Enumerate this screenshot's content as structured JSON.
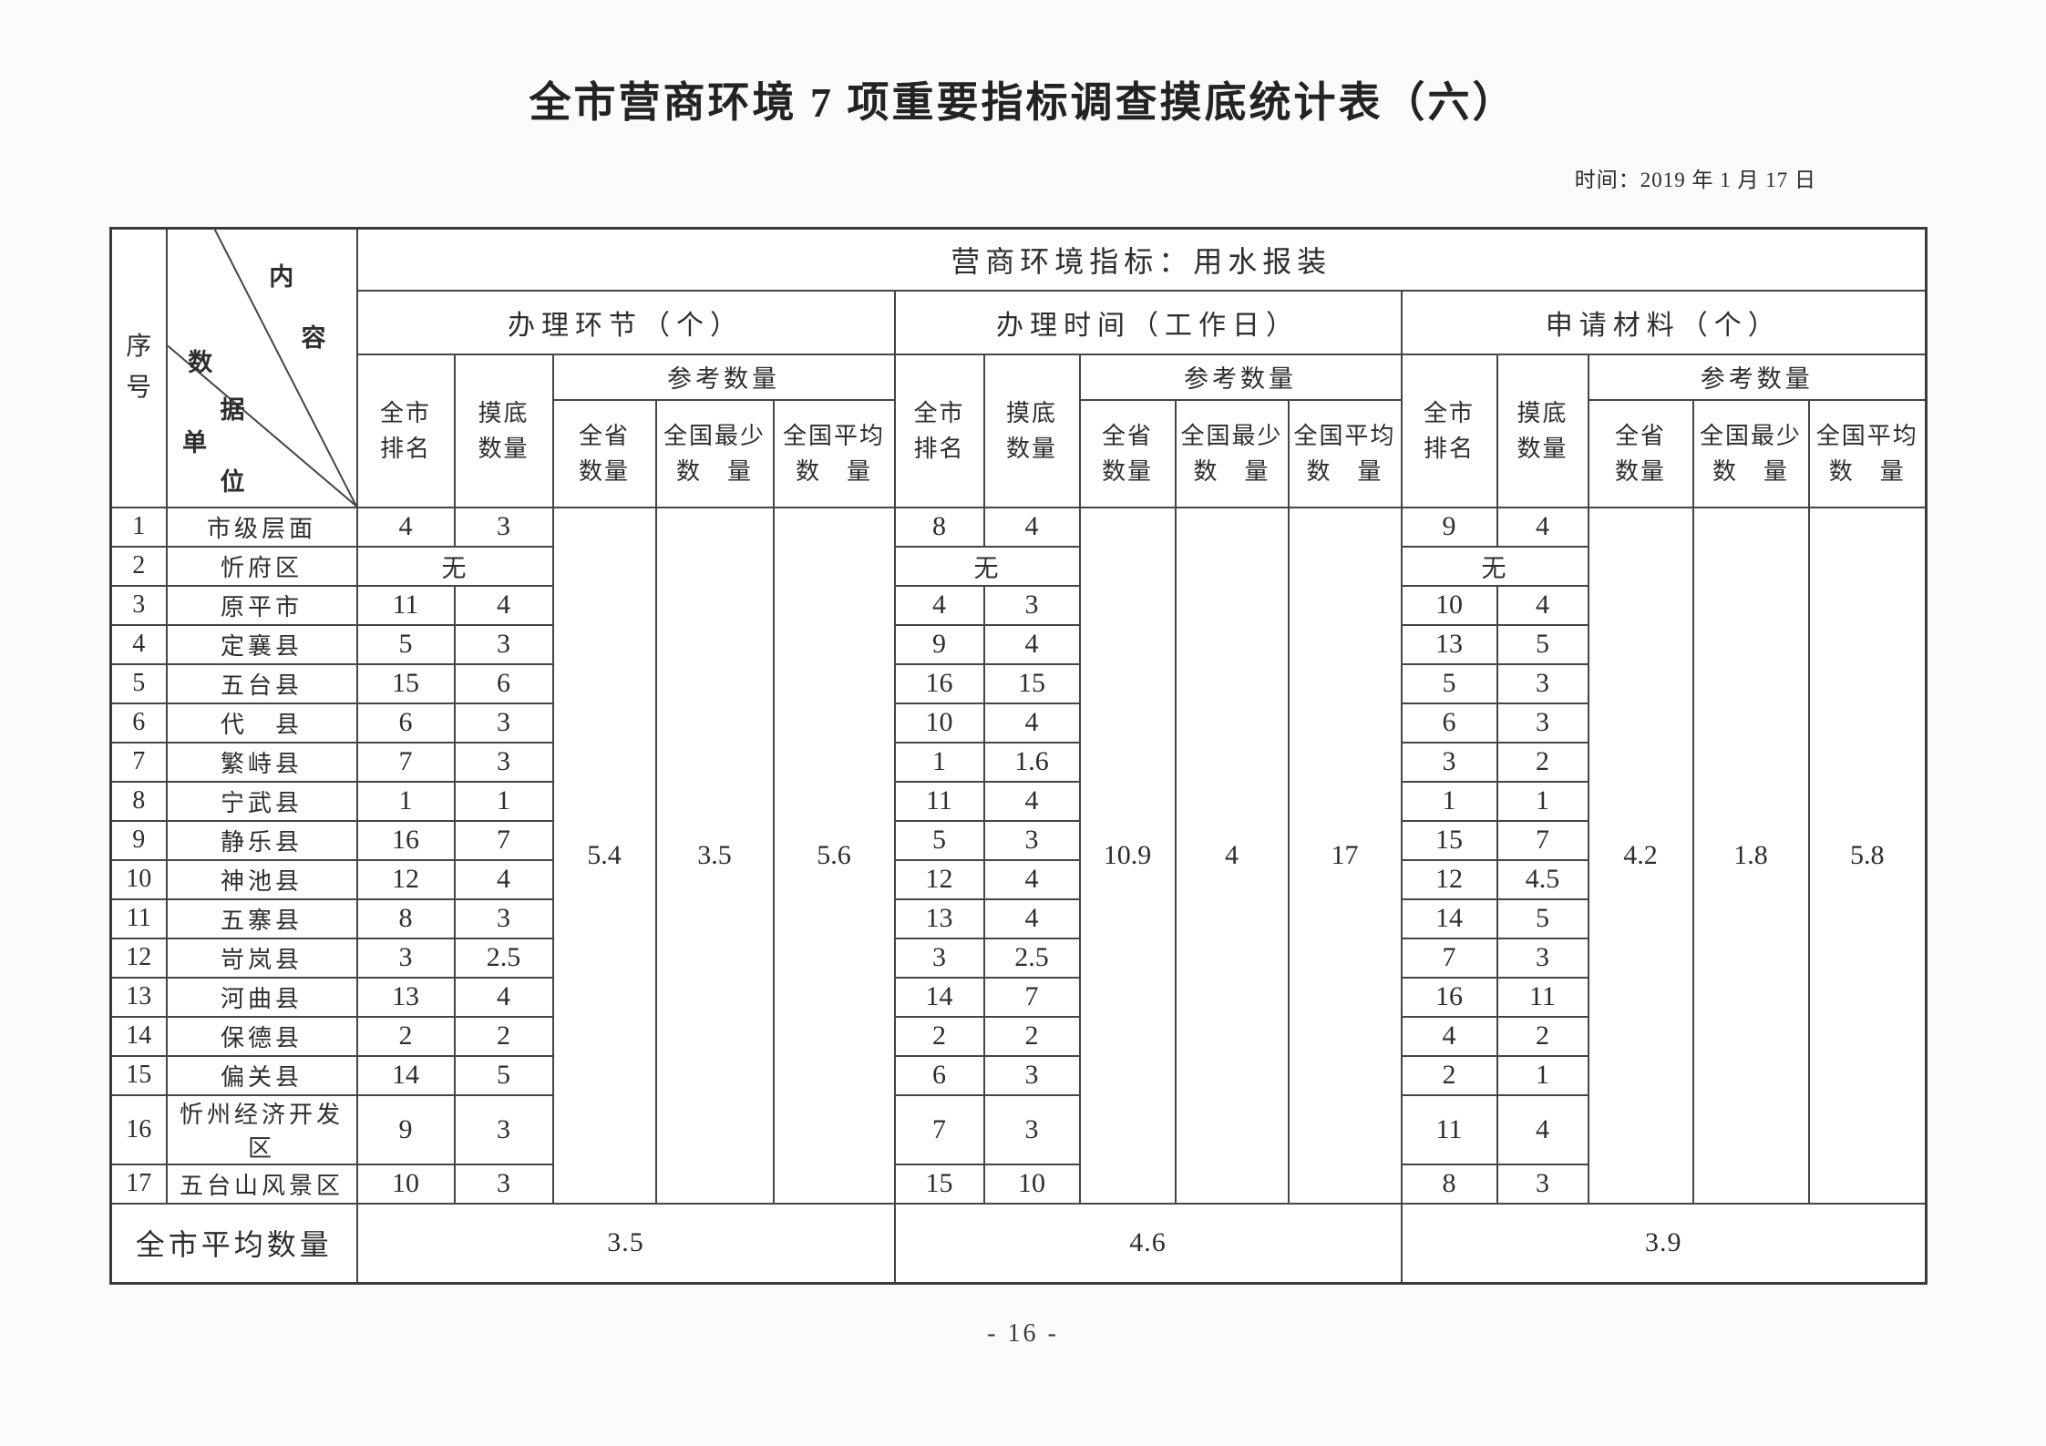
{
  "page": {
    "title": "全市营商环境 7 项重要指标调查摸底统计表（六）",
    "date": "时间：2019 年 1 月 17 日",
    "page_number": "- 16 -"
  },
  "header": {
    "serial": "序号",
    "corner": [
      "内容",
      "数据",
      "单位"
    ],
    "banner": "营商环境指标：用水报装",
    "groups": [
      "办理环节（个）",
      "办理时间（工作日）",
      "申请材料（个）"
    ],
    "sub": {
      "rank": "全市\n排名",
      "survey": "摸底\n数量",
      "reference": "参考数量",
      "province": "全省\n数量",
      "national_min": "全国最少\n数　量",
      "national_avg": "全国平均\n数　量"
    }
  },
  "rows": [
    {
      "no": "1",
      "name": "市级层面",
      "g1": [
        "4",
        "3"
      ],
      "g2": [
        "8",
        "4"
      ],
      "g3": [
        "9",
        "4"
      ]
    },
    {
      "no": "2",
      "name": "忻府区",
      "g1": "无",
      "g2": "无",
      "g3": "无"
    },
    {
      "no": "3",
      "name": "原平市",
      "g1": [
        "11",
        "4"
      ],
      "g2": [
        "4",
        "3"
      ],
      "g3": [
        "10",
        "4"
      ]
    },
    {
      "no": "4",
      "name": "定襄县",
      "g1": [
        "5",
        "3"
      ],
      "g2": [
        "9",
        "4"
      ],
      "g3": [
        "13",
        "5"
      ]
    },
    {
      "no": "5",
      "name": "五台县",
      "g1": [
        "15",
        "6"
      ],
      "g2": [
        "16",
        "15"
      ],
      "g3": [
        "5",
        "3"
      ],
      "b2": true
    },
    {
      "no": "6",
      "name": "代　县",
      "g1": [
        "6",
        "3"
      ],
      "g2": [
        "10",
        "4"
      ],
      "g3": [
        "6",
        "3"
      ]
    },
    {
      "no": "7",
      "name": "繁峙县",
      "g1": [
        "7",
        "3"
      ],
      "g2": [
        "1",
        "1.6"
      ],
      "g3": [
        "3",
        "2"
      ],
      "b2": true
    },
    {
      "no": "8",
      "name": "宁武县",
      "g1": [
        "1",
        "1"
      ],
      "g2": [
        "11",
        "4"
      ],
      "g3": [
        "1",
        "1"
      ],
      "b1": true,
      "b3": true
    },
    {
      "no": "9",
      "name": "静乐县",
      "g1": [
        "16",
        "7"
      ],
      "g2": [
        "5",
        "3"
      ],
      "g3": [
        "15",
        "7"
      ],
      "b1": true
    },
    {
      "no": "10",
      "name": "神池县",
      "g1": [
        "12",
        "4"
      ],
      "g2": [
        "12",
        "4"
      ],
      "g3": [
        "12",
        "4.5"
      ]
    },
    {
      "no": "11",
      "name": "五寨县",
      "g1": [
        "8",
        "3"
      ],
      "g2": [
        "13",
        "4"
      ],
      "g3": [
        "14",
        "5"
      ]
    },
    {
      "no": "12",
      "name": "岢岚县",
      "g1": [
        "3",
        "2.5"
      ],
      "g2": [
        "3",
        "2.5"
      ],
      "g3": [
        "7",
        "3"
      ]
    },
    {
      "no": "13",
      "name": "河曲县",
      "g1": [
        "13",
        "4"
      ],
      "g2": [
        "14",
        "7"
      ],
      "g3": [
        "16",
        "11"
      ],
      "b3": true
    },
    {
      "no": "14",
      "name": "保德县",
      "g1": [
        "2",
        "2"
      ],
      "g2": [
        "2",
        "2"
      ],
      "g3": [
        "4",
        "2"
      ]
    },
    {
      "no": "15",
      "name": "偏关县",
      "g1": [
        "14",
        "5"
      ],
      "g2": [
        "6",
        "3"
      ],
      "g3": [
        "2",
        "1"
      ]
    },
    {
      "no": "16",
      "name": "忻州经济开发区",
      "g1": [
        "9",
        "3"
      ],
      "g2": [
        "7",
        "3"
      ],
      "g3": [
        "11",
        "4"
      ]
    },
    {
      "no": "17",
      "name": "五台山风景区",
      "g1": [
        "10",
        "3"
      ],
      "g2": [
        "15",
        "10"
      ],
      "g3": [
        "8",
        "3"
      ]
    }
  ],
  "refs": {
    "g1": [
      "5.4",
      "3.5",
      "5.6"
    ],
    "g2": [
      "10.9",
      "4",
      "17"
    ],
    "g3": [
      "4.2",
      "1.8",
      "5.8"
    ]
  },
  "footer": {
    "label": "全市平均数量",
    "g1": "3.5",
    "g2": "4.6",
    "g3": "3.9"
  }
}
